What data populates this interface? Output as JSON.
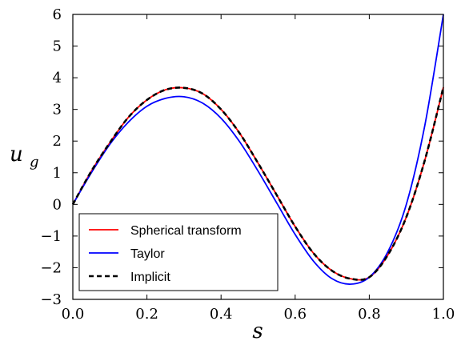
{
  "chart_data": {
    "type": "line",
    "xlabel": "s",
    "ylabel": "u",
    "ylabel_sub": "g",
    "xlim": [
      0.0,
      1.0
    ],
    "ylim": [
      -3,
      6
    ],
    "xticks": [
      "0.0",
      "0.2",
      "0.4",
      "0.6",
      "0.8",
      "1.0"
    ],
    "yticks": [
      "6",
      "5",
      "4",
      "3",
      "2",
      "1",
      "0",
      "−1",
      "−2",
      "−3"
    ],
    "grid": false,
    "legend_position": "lower-left",
    "x": [
      0.0,
      0.05,
      0.1,
      0.15,
      0.2,
      0.25,
      0.3,
      0.35,
      0.4,
      0.45,
      0.5,
      0.55,
      0.6,
      0.65,
      0.7,
      0.75,
      0.8,
      0.85,
      0.9,
      0.95,
      1.0
    ],
    "series": [
      {
        "name": "Spherical transform",
        "color": "#ff0000",
        "style": "solid",
        "values": [
          0.0,
          1.05,
          1.95,
          2.75,
          3.3,
          3.62,
          3.68,
          3.5,
          3.0,
          2.25,
          1.3,
          0.3,
          -0.7,
          -1.55,
          -2.1,
          -2.35,
          -2.3,
          -1.6,
          -0.4,
          1.4,
          3.7
        ]
      },
      {
        "name": "Taylor",
        "color": "#0000ff",
        "style": "solid",
        "values": [
          0.0,
          1.0,
          1.9,
          2.6,
          3.1,
          3.35,
          3.4,
          3.2,
          2.72,
          1.98,
          1.05,
          0.05,
          -0.95,
          -1.8,
          -2.35,
          -2.52,
          -2.3,
          -1.5,
          0.0,
          2.5,
          6.0
        ]
      },
      {
        "name": "Implicit",
        "color": "#000000",
        "style": "dashed",
        "values": [
          0.0,
          1.05,
          1.95,
          2.75,
          3.3,
          3.62,
          3.68,
          3.5,
          3.0,
          2.25,
          1.3,
          0.3,
          -0.7,
          -1.55,
          -2.1,
          -2.35,
          -2.3,
          -1.6,
          -0.4,
          1.4,
          3.7
        ]
      }
    ]
  }
}
